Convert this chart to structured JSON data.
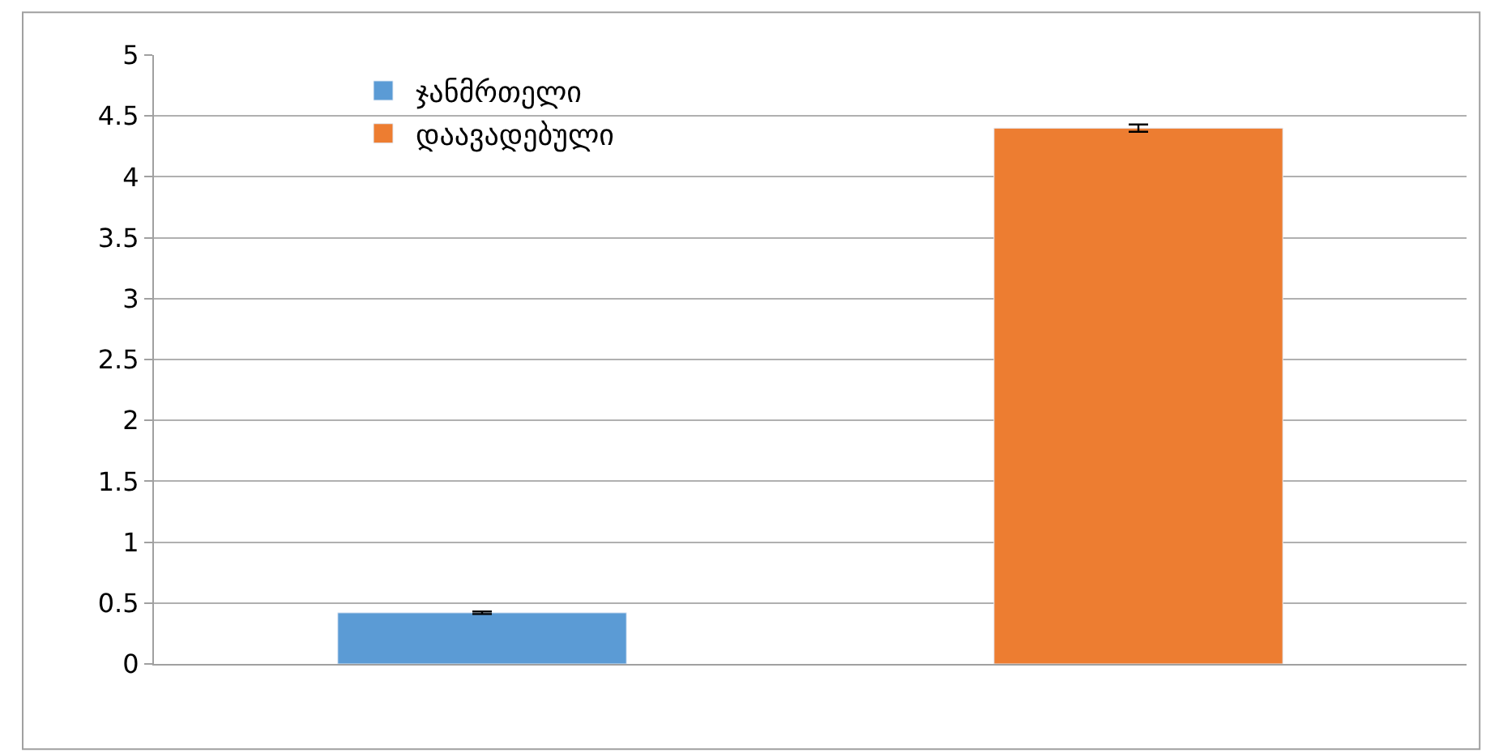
{
  "chart_data": {
    "type": "bar",
    "categories": [
      null,
      null
    ],
    "series": [
      {
        "name": "ჯანმრთელი",
        "color": "#5b9bd5",
        "values": [
          0.42,
          null
        ],
        "errors": [
          0.01,
          null
        ]
      },
      {
        "name": "დაავადებული",
        "color": "#ed7d31",
        "values": [
          null,
          4.4
        ],
        "errors": [
          null,
          0.03
        ]
      }
    ],
    "ylim": [
      0,
      5
    ],
    "yticks": [
      0,
      0.5,
      1,
      1.5,
      2,
      2.5,
      3,
      3.5,
      4,
      4.5,
      5
    ],
    "grid": "y",
    "legend": "top left"
  }
}
